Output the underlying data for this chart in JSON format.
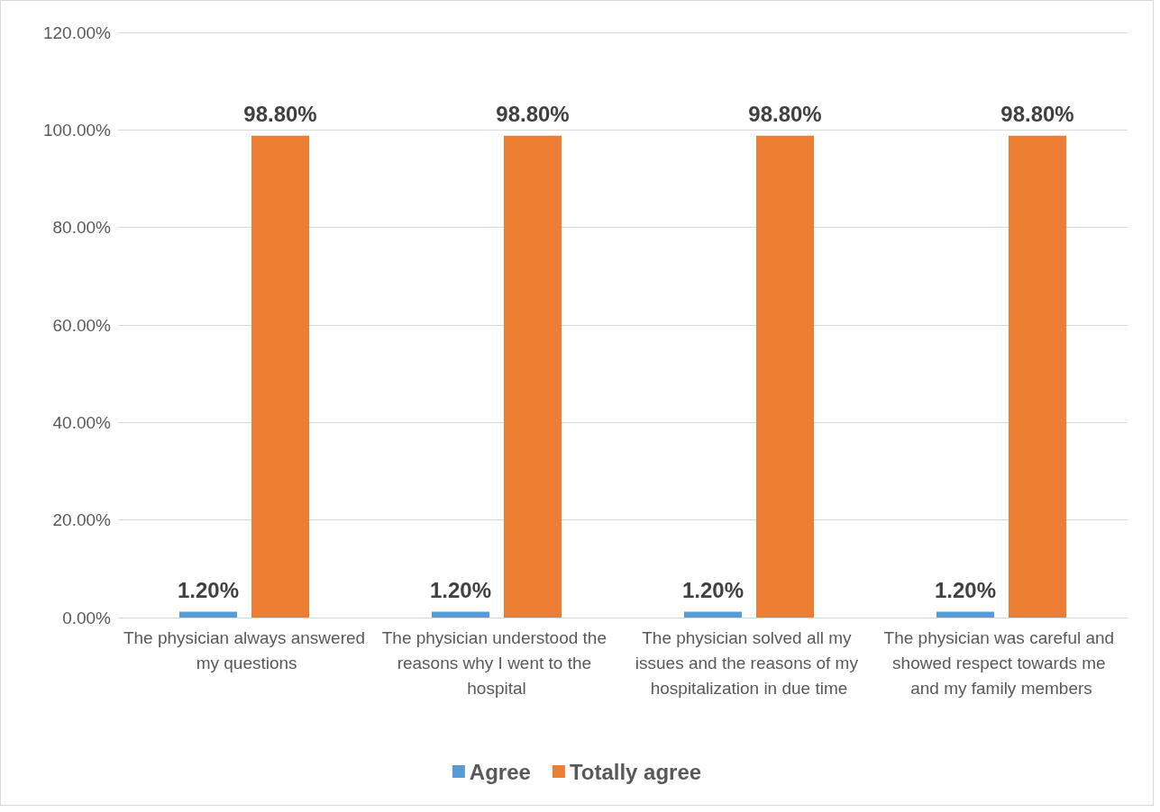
{
  "chart_data": {
    "type": "bar",
    "categories": [
      "The physician always answered my questions",
      "The physician understood the reasons why I went to the hospital",
      "The physician solved all my issues and the reasons of my hospitalization in due time",
      "The physician was careful and showed respect towards me and my family members"
    ],
    "series": [
      {
        "name": "Agree",
        "color": "#5b9bd5",
        "values": [
          1.2,
          1.2,
          1.2,
          1.2
        ],
        "value_labels": [
          "1.20%",
          "1.20%",
          "1.20%",
          "1.20%"
        ]
      },
      {
        "name": "Totally agree",
        "color": "#ed7d31",
        "values": [
          98.8,
          98.8,
          98.8,
          98.8
        ],
        "value_labels": [
          "98.80%",
          "98.80%",
          "98.80%",
          "98.80%"
        ]
      }
    ],
    "ylim": [
      0,
      120
    ],
    "yticks": [
      {
        "value": 0,
        "label": "0.00%"
      },
      {
        "value": 20,
        "label": "20.00%"
      },
      {
        "value": 40,
        "label": "40.00%"
      },
      {
        "value": 60,
        "label": "60.00%"
      },
      {
        "value": 80,
        "label": "80.00%"
      },
      {
        "value": 100,
        "label": "100.00%"
      },
      {
        "value": 120,
        "label": "120.00%"
      }
    ],
    "grid": "y",
    "legend": "bottom"
  }
}
